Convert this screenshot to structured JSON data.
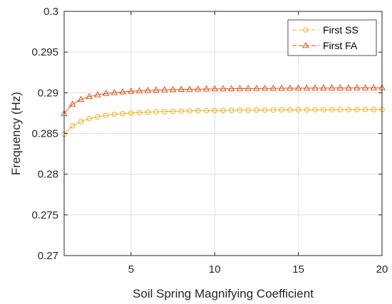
{
  "chart_data": {
    "type": "line",
    "title": "",
    "xlabel": "Soil Spring Magnifying Coefficient",
    "ylabel": "Frequency (Hz)",
    "xlim": [
      1,
      20
    ],
    "ylim": [
      0.27,
      0.3
    ],
    "xticks": [
      5,
      10,
      15,
      20
    ],
    "yticks": [
      0.27,
      0.275,
      0.28,
      0.285,
      0.29,
      0.295,
      0.3
    ],
    "xtick_labels": [
      "5",
      "10",
      "15",
      "20"
    ],
    "ytick_labels": [
      "0.27",
      "0.275",
      "0.28",
      "0.285",
      "0.29",
      "0.295",
      "0.3"
    ],
    "grid": true,
    "legend": "top-right",
    "x": [
      1,
      1.5,
      2,
      2.5,
      3,
      3.5,
      4,
      4.5,
      5,
      5.5,
      6,
      6.5,
      7,
      7.5,
      8,
      8.5,
      9,
      9.5,
      10,
      10.5,
      11,
      11.5,
      12,
      12.5,
      13,
      13.5,
      14,
      14.5,
      15,
      15.5,
      16,
      16.5,
      17,
      17.5,
      18,
      18.5,
      19,
      19.5,
      20
    ],
    "series": [
      {
        "name": "First SS",
        "color": "#EDB120",
        "marker": "circle",
        "values": [
          0.2849,
          0.28595,
          0.28645,
          0.28683,
          0.28705,
          0.28722,
          0.28735,
          0.28744,
          0.28751,
          0.28757,
          0.28762,
          0.28766,
          0.2877,
          0.28773,
          0.28775,
          0.28777,
          0.28779,
          0.28781,
          0.28782,
          0.28783,
          0.28785,
          0.28786,
          0.28787,
          0.28788,
          0.28788,
          0.28789,
          0.2879,
          0.2879,
          0.28791,
          0.28791,
          0.28792,
          0.28792,
          0.28793,
          0.28793,
          0.28793,
          0.28794,
          0.28794,
          0.28794,
          0.28795
        ]
      },
      {
        "name": "First FA",
        "color": "#D95319",
        "marker": "triangle",
        "values": [
          0.28745,
          0.2886,
          0.28918,
          0.28952,
          0.28975,
          0.28991,
          0.29002,
          0.29011,
          0.29018,
          0.29024,
          0.29029,
          0.29033,
          0.29036,
          0.29039,
          0.29041,
          0.29043,
          0.29045,
          0.29047,
          0.29048,
          0.29049,
          0.2905,
          0.29051,
          0.29052,
          0.29053,
          0.29054,
          0.29055,
          0.29055,
          0.29056,
          0.29057,
          0.29057,
          0.29058,
          0.29058,
          0.29059,
          0.29059,
          0.29059,
          0.2906,
          0.2906,
          0.2906,
          0.29061
        ]
      }
    ]
  }
}
